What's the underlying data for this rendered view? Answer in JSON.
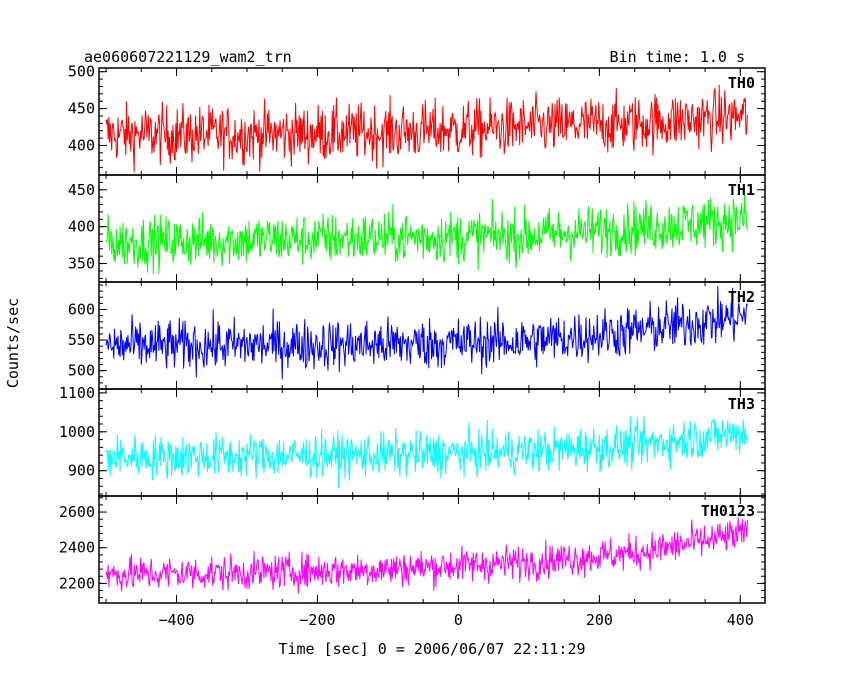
{
  "header": {
    "left": "ae060607221129_wam2_trn",
    "right": "Bin time: 1.0 s"
  },
  "chart_data": {
    "type": "line",
    "xlabel": "Time [sec] 0 = 2006/06/07 22:11:29",
    "ylabel": "Counts/sec",
    "xlim": [
      -510,
      435
    ],
    "x_ticks": [
      -400,
      -200,
      0,
      200,
      400
    ],
    "x_tick_labels": [
      "−400",
      "−200",
      "0",
      "200",
      "400"
    ],
    "x_range_data": [
      -500,
      410
    ],
    "bin_time_s": 1.0,
    "grid": false,
    "panels": [
      {
        "label": "TH0",
        "color": "#ff0000",
        "ylim": [
          360,
          505
        ],
        "y_ticks": [
          400,
          450,
          500
        ],
        "trend": [
          [
            -500,
            415
          ],
          [
            -300,
            415
          ],
          [
            -100,
            418
          ],
          [
            100,
            425
          ],
          [
            250,
            430
          ],
          [
            410,
            440
          ]
        ],
        "noise": 28
      },
      {
        "label": "TH1",
        "color": "#00ff00",
        "ylim": [
          325,
          470
        ],
        "y_ticks": [
          350,
          400,
          450
        ],
        "trend": [
          [
            -500,
            378
          ],
          [
            -300,
            382
          ],
          [
            -100,
            385
          ],
          [
            100,
            388
          ],
          [
            250,
            398
          ],
          [
            410,
            410
          ]
        ],
        "noise": 25
      },
      {
        "label": "TH2",
        "color": "#0000ff",
        "ylim": [
          470,
          645
        ],
        "y_ticks": [
          500,
          550,
          600
        ],
        "trend": [
          [
            -500,
            540
          ],
          [
            -300,
            542
          ],
          [
            -100,
            543
          ],
          [
            100,
            548
          ],
          [
            250,
            565
          ],
          [
            410,
            590
          ]
        ],
        "noise": 30
      },
      {
        "label": "TH3",
        "color": "#00ffff",
        "ylim": [
          835,
          1110
        ],
        "y_ticks": [
          900,
          1000,
          1100
        ],
        "trend": [
          [
            -500,
            935
          ],
          [
            -300,
            938
          ],
          [
            -100,
            940
          ],
          [
            100,
            950
          ],
          [
            250,
            965
          ],
          [
            410,
            1000
          ]
        ],
        "noise": 40
      },
      {
        "label": "TH0123",
        "color": "#ff00ff",
        "ylim": [
          2090,
          2690
        ],
        "y_ticks": [
          2200,
          2400,
          2600
        ],
        "trend": [
          [
            -500,
            2250
          ],
          [
            -300,
            2260
          ],
          [
            -100,
            2280
          ],
          [
            100,
            2320
          ],
          [
            250,
            2370
          ],
          [
            410,
            2480
          ]
        ],
        "noise": 70
      }
    ]
  }
}
